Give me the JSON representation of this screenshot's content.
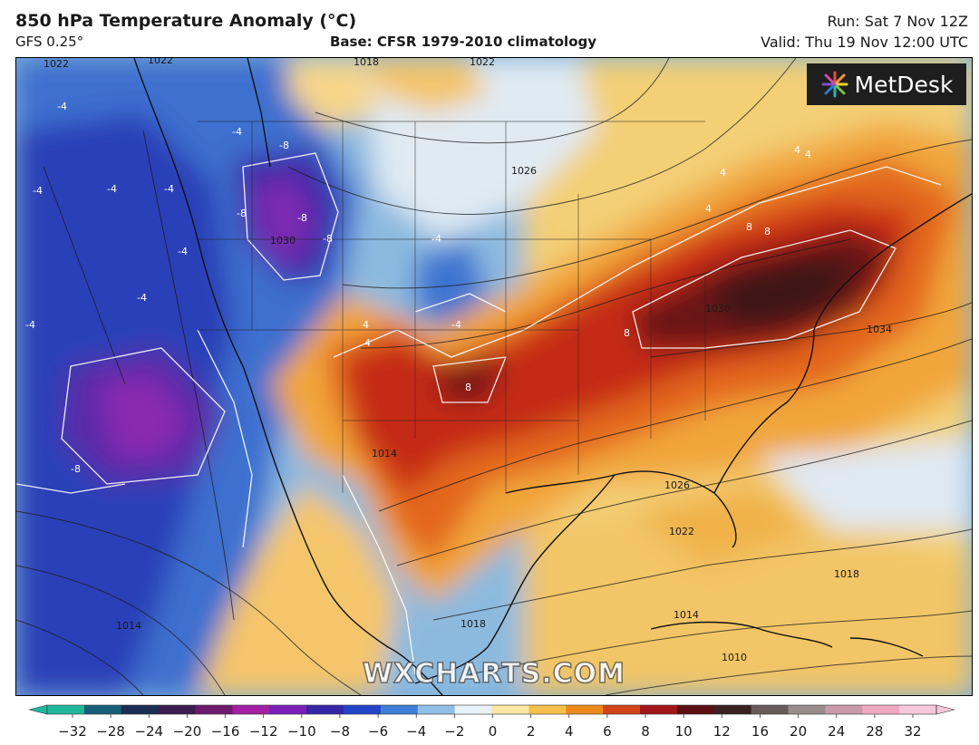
{
  "header": {
    "title": "850 hPa Temperature Anomaly (°C)",
    "model": "GFS 0.25°",
    "base": "Base: CFSR 1979-2010 climatology",
    "run": "Run: Sat 7 Nov 12Z",
    "valid": "Valid: Thu 19 Nov 12:00 UTC"
  },
  "logo": {
    "text": "MetDesk"
  },
  "watermark": {
    "text": "WXCHARTS.COM"
  },
  "colorbar": {
    "ticks": [
      "−32",
      "−28",
      "−24",
      "−20",
      "−16",
      "−12",
      "−10",
      "−8",
      "−6",
      "−4",
      "−2",
      "0",
      "2",
      "4",
      "6",
      "8",
      "10",
      "12",
      "16",
      "20",
      "24",
      "28",
      "32"
    ],
    "colors": [
      "#1fb89a",
      "#175e7a",
      "#1a2e55",
      "#3a1d4d",
      "#6e1a6e",
      "#a31fa3",
      "#7a1fb8",
      "#3526a8",
      "#2346c8",
      "#3e7ed8",
      "#8fbfe6",
      "#e9f2f8",
      "#fbe7a6",
      "#f6c04a",
      "#ee8a1c",
      "#d2451b",
      "#a3161b",
      "#5c0f12",
      "#3a2222",
      "#6a5a5a",
      "#9a8c8c",
      "#c99aaa",
      "#eea8c0",
      "#f6c8da"
    ]
  },
  "map": {
    "temperature_labels": [
      {
        "text": "-4"
      },
      {
        "text": "-4"
      },
      {
        "text": "-4"
      },
      {
        "text": "-4"
      },
      {
        "text": "-4"
      },
      {
        "text": "-8"
      },
      {
        "text": "-8"
      },
      {
        "text": "-8"
      },
      {
        "text": "-8"
      },
      {
        "text": "-4"
      },
      {
        "text": "-4"
      },
      {
        "text": "-4"
      },
      {
        "text": "-4"
      },
      {
        "text": "-8"
      },
      {
        "text": "-4"
      },
      {
        "text": "4"
      },
      {
        "text": "4"
      },
      {
        "text": "8"
      },
      {
        "text": "8"
      },
      {
        "text": "8"
      },
      {
        "text": "4"
      },
      {
        "text": "4"
      },
      {
        "text": "4"
      },
      {
        "text": "4"
      },
      {
        "text": "8"
      }
    ],
    "pressure_labels": [
      {
        "text": "1018"
      },
      {
        "text": "1022"
      },
      {
        "text": "1026"
      },
      {
        "text": "1030"
      },
      {
        "text": "1034"
      },
      {
        "text": "1030"
      },
      {
        "text": "1014"
      },
      {
        "text": "1026"
      },
      {
        "text": "1022"
      },
      {
        "text": "1018"
      },
      {
        "text": "1014"
      },
      {
        "text": "1010"
      },
      {
        "text": "1014"
      },
      {
        "text": "1018"
      },
      {
        "text": "1022"
      },
      {
        "text": "1022"
      }
    ]
  }
}
